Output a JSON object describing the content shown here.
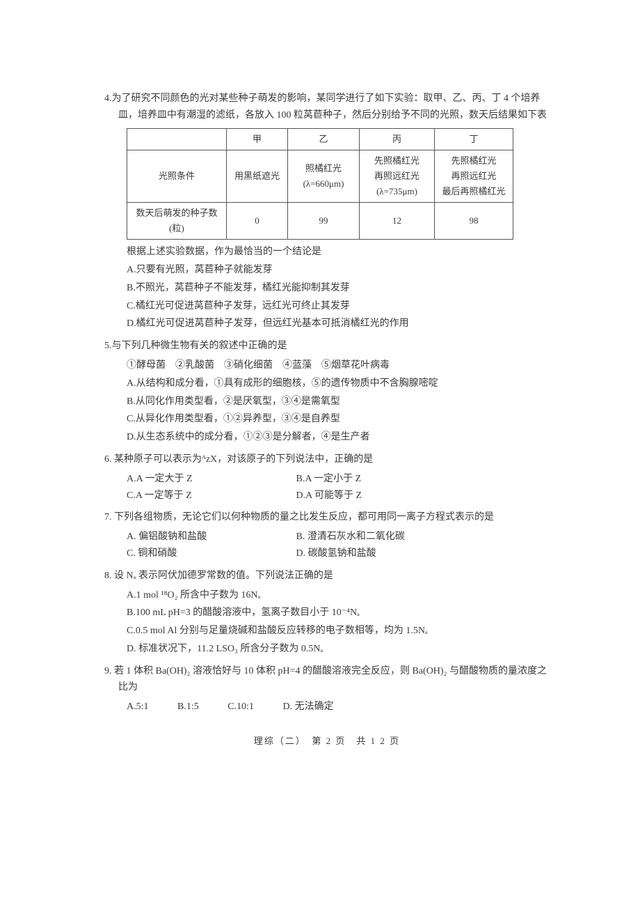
{
  "q4": {
    "stem": "4.为了研究不同颜色的光对某些种子萌发的影响，某同学进行了如下实验：取甲、乙、丙、丁 4 个培养皿，培养皿中有潮湿的滤纸，各放入 100 粒莴苣种子，然后分别给予不同的光照，数天后结果如下表",
    "table": {
      "cols": [
        "",
        "甲",
        "乙",
        "丙",
        "丁"
      ],
      "row1_head": "光照条件",
      "row1": {
        "a": "用黑纸遮光",
        "b1": "照橘红光",
        "b2": "(λ=660μm)",
        "c1": "先照橘红光",
        "c2": "再照远红光",
        "c3": "(λ=735μm)",
        "d1": "先照橘红光",
        "d2": "再照远红光",
        "d3": "最后再照橘红光"
      },
      "row2_head": "数天后萌发的种子数(粒)",
      "row2": {
        "a": "0",
        "b": "99",
        "c": "12",
        "d": "98"
      }
    },
    "lead": "根据上述实验数据，作为最恰当的一个结论是",
    "A": "A.只要有光照，莴苣种子就能发芽",
    "B": "B.不照光，莴苣种子不能发芽，橘红光能抑制其发芽",
    "C": "C.橘红光可促进莴苣种子发芽，远红光可终止其发芽",
    "D": "D.橘红光可促进莴苣种子发芽，但远红光基本可抵消橘红光的作用"
  },
  "q5": {
    "stem": "5.与下列几种微生物有关的叙述中正确的是",
    "items": "①酵母菌　②乳酸菌　③硝化细菌　④蓝藻　⑤烟草花叶病毒",
    "A": "A.从结构和成分看，①具有成形的细胞核，⑤的遗传物质中不含胸腺嘧啶",
    "B": "B.从同化作用类型看，②是厌氧型，③④是需氧型",
    "C": "C.从异化作用类型看，①②异养型，③④是自养型",
    "D": "D.从生态系统中的成分看，①②③是分解者，④是生产者"
  },
  "q6": {
    "stem": "6. 某种原子可以表示为ᴬzX，对该原子的下列说法中，正确的是",
    "A": "A.A 一定大于 Z",
    "B": "B.A 一定小于 Z",
    "C": "C.A 一定等于 Z",
    "D": "D.A 可能等于 Z"
  },
  "q7": {
    "stem": "7. 下列各组物质，无论它们以何种物质的量之比发生反应，都可用同一离子方程式表示的是",
    "A": "A. 偏铝酸钠和盐酸",
    "B": "B. 澄清石灰水和二氧化碳",
    "C": "C. 铜和硝酸",
    "D": "D. 碳酸氢钠和盐酸"
  },
  "q8": {
    "stem": "8. 设 Nₐ 表示阿伏加德罗常数的值。下列说法正确的是",
    "A": "A.1 mol ¹⁸O₂ 所含中子数为 16Nₐ",
    "B": "B.100 mL pH=3 的醋酸溶液中，氢离子数目小于 10⁻⁴Nₐ",
    "C": "C.0.5 mol Al 分别与足量烧碱和盐酸反应转移的电子数相等，均为 1.5Nₐ",
    "D": "D. 标准状况下，11.2 LSO₃ 所含分子数为 0.5Nₐ"
  },
  "q9": {
    "stem": "9. 若 1 体积 Ba(OH)₂ 溶液恰好与 10 体积 pH=4 的醋酸溶液完全反应，则 Ba(OH)₂ 与醋酸物质的量浓度之比为",
    "A": "A.5:1",
    "B": "B.1:5",
    "C": "C.10:1",
    "D": "D. 无法确定"
  },
  "footer": "理综（二）　第 2 页　共 1 2 页"
}
